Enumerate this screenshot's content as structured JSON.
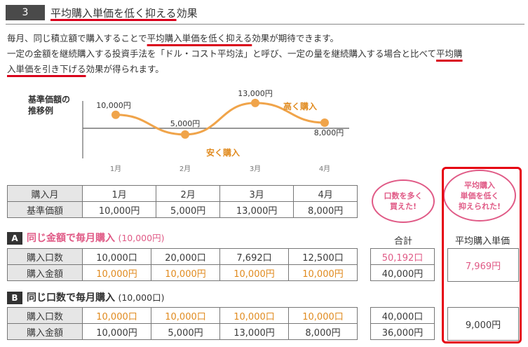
{
  "section": {
    "number": "3",
    "title_highlight": "平均購入単価を低く抑える",
    "title_rest": "効果"
  },
  "intro": {
    "l1_a": "毎月、同じ積立額で購入することで",
    "l1_hl": "平均購入単価を低く抑える",
    "l1_b": "効果が期待できます。",
    "l2_a": "一定の金額を継続購入する投資手法を「ドル・コスト平均法」と呼び、一定の量を継続購入する場合と比べて",
    "l2_hl1": "平均購",
    "l3_hl2": "入単価を引き下げる",
    "l3_b": "効果が得られます。"
  },
  "chart_data": {
    "type": "line",
    "title": "基準価額の推移例",
    "x": [
      "1月",
      "2月",
      "3月",
      "4月"
    ],
    "values": [
      10000,
      5000,
      13000,
      8000
    ],
    "point_labels": [
      "10,000円",
      "5,000円",
      "13,000円",
      "8,000円"
    ],
    "annotations": [
      {
        "text": "安く購入",
        "near": "2月"
      },
      {
        "text": "高く購入",
        "near": "3月"
      }
    ],
    "ylim": [
      0,
      16000
    ],
    "line_color": "#f0a44a",
    "point_color": "#f0a44a"
  },
  "price_table": {
    "rows": [
      {
        "label": "購入月",
        "cells": [
          "1月",
          "2月",
          "3月",
          "4月"
        ]
      },
      {
        "label": "基準価額",
        "cells": [
          "10,000円",
          "5,000円",
          "13,000円",
          "8,000円"
        ]
      }
    ]
  },
  "bubbles": {
    "left": [
      "口数を多く",
      "買えた!"
    ],
    "right": [
      "平均購入",
      "単価を低く",
      "抑えられた!"
    ]
  },
  "case_a": {
    "badge": "A",
    "title": "同じ金額で毎月購入",
    "amount": "(10,000円)",
    "total_header": "合計",
    "avg_header": "平均購入単価",
    "rows": [
      {
        "label": "購入口数",
        "cells": [
          "10,000口",
          "20,000口",
          "7,692口",
          "12,500口"
        ],
        "total": "50,192口"
      },
      {
        "label": "購入金額",
        "cells": [
          "10,000円",
          "10,000円",
          "10,000円",
          "10,000円"
        ],
        "total": "40,000円"
      }
    ],
    "avg": "7,969円"
  },
  "case_b": {
    "badge": "B",
    "title": "同じ口数で毎月購入",
    "amount": "(10,000口)",
    "rows": [
      {
        "label": "購入口数",
        "cells": [
          "10,000口",
          "10,000口",
          "10,000口",
          "10,000口"
        ],
        "total": "40,000口"
      },
      {
        "label": "購入金額",
        "cells": [
          "10,000円",
          "5,000円",
          "13,000円",
          "8,000円"
        ],
        "total": "36,000円"
      }
    ],
    "avg": "9,000円"
  },
  "colors": {
    "accent_red": "#d9001b",
    "pink": "#e05a86",
    "orange": "#e08a1e",
    "label_bg": "#e6e6e6"
  }
}
